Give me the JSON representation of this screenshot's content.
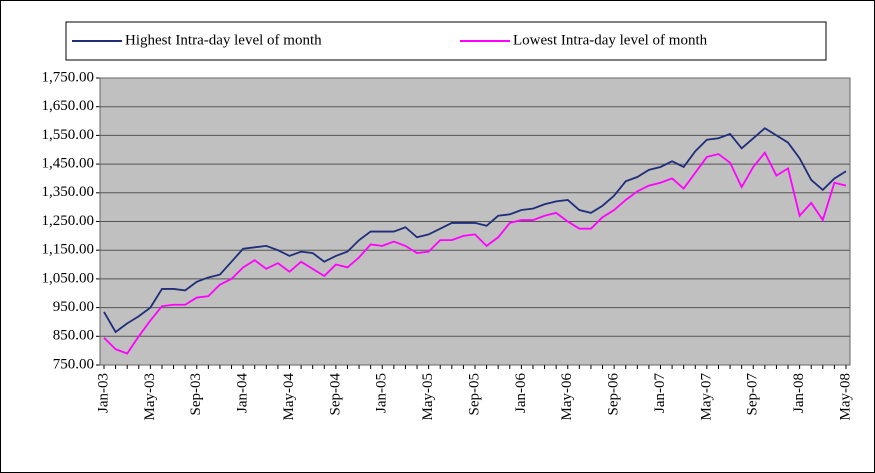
{
  "chart_data": {
    "type": "line",
    "categories": [
      "Jan-03",
      null,
      null,
      null,
      "May-03",
      null,
      null,
      null,
      "Sep-03",
      null,
      null,
      null,
      "Jan-04",
      null,
      null,
      null,
      "May-04",
      null,
      null,
      null,
      "Sep-04",
      null,
      null,
      null,
      "Jan-05",
      null,
      null,
      null,
      "May-05",
      null,
      null,
      null,
      "Sep-05",
      null,
      null,
      null,
      "Jan-06",
      null,
      null,
      null,
      "May-06",
      null,
      null,
      null,
      "Sep-06",
      null,
      null,
      null,
      "Jan-07",
      null,
      null,
      null,
      "May-07",
      null,
      null,
      null,
      "Sep-07",
      null,
      null,
      null,
      "Jan-08",
      null,
      null,
      null,
      "May-08"
    ],
    "series": [
      {
        "name": "Highest Intra-day level of month",
        "color": "#1f2d7a",
        "values": [
          935,
          865,
          895,
          920,
          950,
          1015,
          1015,
          1010,
          1040,
          1055,
          1065,
          1110,
          1155,
          1160,
          1165,
          1150,
          1130,
          1145,
          1140,
          1110,
          1130,
          1145,
          1185,
          1215,
          1215,
          1215,
          1230,
          1195,
          1205,
          1225,
          1245,
          1245,
          1245,
          1235,
          1270,
          1275,
          1290,
          1295,
          1310,
          1320,
          1325,
          1290,
          1280,
          1305,
          1340,
          1390,
          1405,
          1430,
          1440,
          1460,
          1440,
          1495,
          1535,
          1540,
          1555,
          1505,
          1540,
          1575,
          1550,
          1525,
          1470,
          1395,
          1360,
          1400,
          1425
        ]
      },
      {
        "name": "Lowest Intra-day level of month",
        "color": "#ff00ff",
        "values": [
          845,
          805,
          790,
          850,
          905,
          955,
          960,
          960,
          985,
          990,
          1030,
          1050,
          1090,
          1115,
          1085,
          1105,
          1075,
          1110,
          1085,
          1060,
          1100,
          1090,
          1125,
          1170,
          1165,
          1180,
          1165,
          1140,
          1145,
          1185,
          1185,
          1200,
          1205,
          1165,
          1195,
          1245,
          1255,
          1255,
          1270,
          1280,
          1250,
          1225,
          1225,
          1265,
          1290,
          1325,
          1355,
          1375,
          1385,
          1400,
          1365,
          1420,
          1475,
          1485,
          1455,
          1370,
          1440,
          1490,
          1410,
          1435,
          1270,
          1315,
          1255,
          1385,
          1375
        ]
      }
    ],
    "ylim": [
      750,
      1750
    ],
    "yticks": [
      {
        "value": 750,
        "label": "750.00"
      },
      {
        "value": 850,
        "label": "850.00"
      },
      {
        "value": 950,
        "label": "950.00"
      },
      {
        "value": 1050,
        "label": "1,050.00"
      },
      {
        "value": 1150,
        "label": "1,150.00"
      },
      {
        "value": 1250,
        "label": "1,250.00"
      },
      {
        "value": 1350,
        "label": "1,350.00"
      },
      {
        "value": 1450,
        "label": "1,450.00"
      },
      {
        "value": 1550,
        "label": "1,550.00"
      },
      {
        "value": 1650,
        "label": "1,650.00"
      },
      {
        "value": 1750,
        "label": "1,750.00"
      }
    ],
    "grid": true,
    "legend": "top"
  }
}
